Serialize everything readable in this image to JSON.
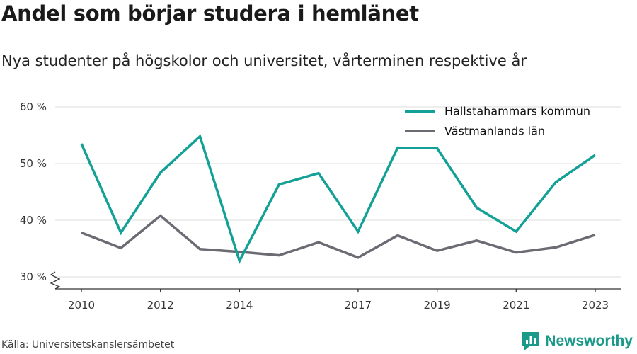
{
  "header": {
    "title": "Andel som börjar studera i hemlänet",
    "subtitle": "Nya studenter på högskolor och universitet, vårterminen respektive år"
  },
  "footer": {
    "source": "Källa: Universitetskanslersämbetet",
    "brand": "Newsworthy"
  },
  "colors": {
    "accent": "#1b9a8a",
    "series_primary": "#13a096",
    "series_secondary": "#6b6b73",
    "grid": "#dddddd",
    "axis": "#333333"
  },
  "chart_data": {
    "type": "line",
    "title": "Andel som börjar studera i hemlänet",
    "subtitle": "Nya studenter på högskolor och universitet, vårterminen respektive år",
    "x": [
      2010,
      2011,
      2012,
      2013,
      2014,
      2015,
      2016,
      2017,
      2018,
      2019,
      2020,
      2021,
      2022,
      2023
    ],
    "x_tick_labels": [
      "2010",
      "2012",
      "2014",
      "2017",
      "2019",
      "2021",
      "2023"
    ],
    "x_tick_values": [
      2010,
      2012,
      2014,
      2017,
      2019,
      2021,
      2023
    ],
    "y_tick_labels": [
      "30 %",
      "40 %",
      "50 %",
      "60 %"
    ],
    "y_tick_values": [
      30,
      40,
      50,
      60
    ],
    "ylim": [
      30,
      60
    ],
    "y_axis_break": true,
    "grid": true,
    "legend_position": "top-right",
    "series": [
      {
        "name": "Hallstahammars kommun",
        "color": "#13a096",
        "values": [
          53.5,
          37.8,
          48.4,
          54.8,
          32.8,
          46.3,
          48.3,
          38.0,
          52.8,
          52.7,
          42.2,
          38.0,
          46.7,
          51.5
        ]
      },
      {
        "name": "Västmanlands län",
        "color": "#6b6b73",
        "values": [
          37.8,
          35.1,
          40.8,
          34.9,
          34.4,
          33.8,
          36.1,
          33.4,
          37.3,
          34.6,
          36.4,
          34.3,
          35.2,
          37.4
        ]
      }
    ]
  }
}
